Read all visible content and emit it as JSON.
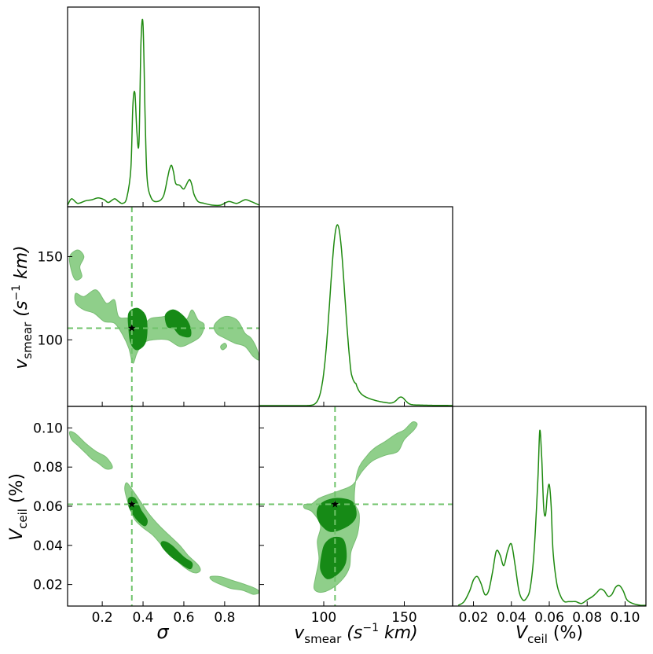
{
  "colors": {
    "line": "#1f8a10",
    "outer_fill": "#8fcf8a",
    "outer_edge": "#79bd74",
    "inner_fill": "#168a16",
    "guide": "#6fc36a",
    "star": "#000000"
  },
  "truth": {
    "sigma": 0.345,
    "v_smear": 107,
    "V_ceil": 0.061
  },
  "axis_labels": {
    "sigma": "σ",
    "v_smear_base": "v",
    "v_smear_sub": "smear",
    "v_smear_unit_open": " (s",
    "v_smear_exp": "−1",
    "v_smear_unit_close": " km)",
    "V_ceil_base": "V",
    "V_ceil_sub": "ceil",
    "V_ceil_unit": " (%)"
  },
  "chart_data": [
    {
      "panel": "sigma-marginal",
      "type": "line",
      "xlim": [
        0.03,
        0.97
      ],
      "x": [
        0.03,
        0.05,
        0.08,
        0.12,
        0.15,
        0.18,
        0.21,
        0.23,
        0.26,
        0.28,
        0.3,
        0.32,
        0.34,
        0.35,
        0.36,
        0.37,
        0.38,
        0.39,
        0.4,
        0.41,
        0.42,
        0.44,
        0.47,
        0.5,
        0.52,
        0.53,
        0.54,
        0.55,
        0.56,
        0.58,
        0.6,
        0.62,
        0.63,
        0.64,
        0.65,
        0.67,
        0.7,
        0.74,
        0.78,
        0.82,
        0.86,
        0.9,
        0.93,
        0.97
      ],
      "y": [
        0.0,
        0.035,
        0.01,
        0.025,
        0.03,
        0.04,
        0.03,
        0.015,
        0.035,
        0.02,
        0.01,
        0.04,
        0.2,
        0.55,
        0.62,
        0.4,
        0.35,
        0.9,
        1.0,
        0.5,
        0.15,
        0.04,
        0.02,
        0.05,
        0.15,
        0.2,
        0.22,
        0.18,
        0.12,
        0.11,
        0.09,
        0.13,
        0.14,
        0.11,
        0.06,
        0.02,
        0.01,
        0.0,
        0.0,
        0.02,
        0.01,
        0.03,
        0.02,
        0.0
      ],
      "tick_labels": [
        "0.2",
        "0.4",
        "0.6",
        "0.8"
      ],
      "tick_values": [
        0.2,
        0.4,
        0.6,
        0.8
      ]
    },
    {
      "panel": "v_smear-marginal",
      "type": "line",
      "xlim": [
        60,
        180
      ],
      "tick_labels": [
        "100",
        "150"
      ],
      "tick_values": [
        100,
        150
      ],
      "peak": {
        "center": 108.5,
        "sigma": 4.6,
        "height": 1.0
      },
      "secondary_bump": {
        "center": 148,
        "sigma": 2.5,
        "height": 0.04
      },
      "right_tail": {
        "start": 117,
        "scale": 12,
        "height": 0.1
      }
    },
    {
      "panel": "V_ceil-marginal",
      "type": "line",
      "xlim": [
        0.009,
        0.111
      ],
      "x": [
        0.012,
        0.015,
        0.018,
        0.02,
        0.022,
        0.024,
        0.026,
        0.028,
        0.03,
        0.032,
        0.034,
        0.036,
        0.038,
        0.04,
        0.042,
        0.044,
        0.046,
        0.048,
        0.05,
        0.052,
        0.054,
        0.055,
        0.056,
        0.057,
        0.058,
        0.059,
        0.06,
        0.061,
        0.062,
        0.064,
        0.066,
        0.068,
        0.07,
        0.072,
        0.074,
        0.077,
        0.08,
        0.083,
        0.085,
        0.087,
        0.089,
        0.091,
        0.093,
        0.095,
        0.097,
        0.099,
        0.101,
        0.104,
        0.108,
        0.111
      ],
      "y": [
        0.0,
        0.02,
        0.08,
        0.14,
        0.16,
        0.12,
        0.06,
        0.08,
        0.18,
        0.3,
        0.28,
        0.22,
        0.3,
        0.34,
        0.22,
        0.08,
        0.03,
        0.04,
        0.1,
        0.3,
        0.7,
        0.97,
        0.82,
        0.55,
        0.5,
        0.62,
        0.67,
        0.55,
        0.3,
        0.12,
        0.05,
        0.02,
        0.02,
        0.02,
        0.02,
        0.01,
        0.03,
        0.05,
        0.07,
        0.09,
        0.08,
        0.05,
        0.06,
        0.1,
        0.11,
        0.08,
        0.03,
        0.01,
        0.0,
        0.0
      ],
      "tick_labels": [
        "0.02",
        "0.04",
        "0.06",
        "0.08",
        "0.10"
      ],
      "tick_values": [
        0.02,
        0.04,
        0.06,
        0.08,
        0.1
      ]
    },
    {
      "panel": "v_smear-vs-sigma",
      "type": "scatter",
      "xlim": [
        0.03,
        0.97
      ],
      "ylim": [
        60,
        180
      ],
      "ytick_labels": [
        "100",
        "150"
      ],
      "ytick_values": [
        100,
        150
      ],
      "outer_contours": [
        [
          [
            0.04,
            150
          ],
          [
            0.08,
            154
          ],
          [
            0.11,
            150
          ],
          [
            0.09,
            144
          ],
          [
            0.1,
            138
          ],
          [
            0.07,
            136
          ],
          [
            0.05,
            141
          ]
        ],
        [
          [
            0.07,
            128
          ],
          [
            0.11,
            126
          ],
          [
            0.17,
            130
          ],
          [
            0.22,
            122
          ],
          [
            0.26,
            124
          ],
          [
            0.28,
            114
          ],
          [
            0.33,
            113
          ],
          [
            0.4,
            110
          ],
          [
            0.44,
            113
          ],
          [
            0.5,
            114
          ],
          [
            0.56,
            116
          ],
          [
            0.61,
            112
          ],
          [
            0.64,
            118
          ],
          [
            0.67,
            112
          ],
          [
            0.7,
            109
          ],
          [
            0.68,
            102
          ],
          [
            0.63,
            98
          ],
          [
            0.58,
            96
          ],
          [
            0.52,
            100
          ],
          [
            0.45,
            100
          ],
          [
            0.4,
            98
          ],
          [
            0.37,
            92
          ],
          [
            0.35,
            86
          ],
          [
            0.33,
            95
          ],
          [
            0.3,
            103
          ],
          [
            0.26,
            110
          ],
          [
            0.21,
            111
          ],
          [
            0.16,
            116
          ],
          [
            0.11,
            118
          ],
          [
            0.07,
            122
          ]
        ],
        [
          [
            0.75,
            109
          ],
          [
            0.8,
            114
          ],
          [
            0.86,
            112
          ],
          [
            0.9,
            104
          ],
          [
            0.93,
            101
          ],
          [
            0.96,
            94
          ],
          [
            0.97,
            88
          ],
          [
            0.94,
            90
          ],
          [
            0.9,
            96
          ],
          [
            0.85,
            98
          ],
          [
            0.8,
            101
          ],
          [
            0.76,
            104
          ]
        ],
        [
          [
            0.78,
            96
          ],
          [
            0.8,
            98
          ],
          [
            0.81,
            96
          ],
          [
            0.79,
            94
          ]
        ]
      ],
      "inner_contours": [
        [
          [
            0.33,
            116
          ],
          [
            0.37,
            119
          ],
          [
            0.41,
            115
          ],
          [
            0.42,
            107
          ],
          [
            0.41,
            98
          ],
          [
            0.37,
            94
          ],
          [
            0.34,
            98
          ],
          [
            0.33,
            107
          ]
        ],
        [
          [
            0.51,
            115
          ],
          [
            0.55,
            118
          ],
          [
            0.6,
            114
          ],
          [
            0.63,
            108
          ],
          [
            0.63,
            102
          ],
          [
            0.58,
            103
          ],
          [
            0.55,
            107
          ],
          [
            0.52,
            108
          ]
        ]
      ]
    },
    {
      "panel": "V_ceil-vs-sigma",
      "type": "scatter",
      "xlim": [
        0.03,
        0.97
      ],
      "ylim": [
        0.009,
        0.111
      ],
      "ytick_labels": [
        "0.02",
        "0.04",
        "0.06",
        "0.08",
        "0.10"
      ],
      "ytick_values": [
        0.02,
        0.04,
        0.06,
        0.08,
        0.1
      ],
      "outer_contours": [
        [
          [
            0.04,
            0.098
          ],
          [
            0.07,
            0.097
          ],
          [
            0.12,
            0.092
          ],
          [
            0.17,
            0.088
          ],
          [
            0.22,
            0.085
          ],
          [
            0.25,
            0.08
          ],
          [
            0.22,
            0.079
          ],
          [
            0.18,
            0.082
          ],
          [
            0.15,
            0.084
          ],
          [
            0.12,
            0.087
          ],
          [
            0.08,
            0.091
          ],
          [
            0.05,
            0.094
          ]
        ],
        [
          [
            0.32,
            0.072
          ],
          [
            0.35,
            0.068
          ],
          [
            0.39,
            0.062
          ],
          [
            0.43,
            0.056
          ],
          [
            0.48,
            0.05
          ],
          [
            0.53,
            0.045
          ],
          [
            0.58,
            0.04
          ],
          [
            0.62,
            0.035
          ],
          [
            0.67,
            0.03
          ],
          [
            0.68,
            0.027
          ],
          [
            0.65,
            0.026
          ],
          [
            0.6,
            0.029
          ],
          [
            0.55,
            0.034
          ],
          [
            0.5,
            0.039
          ],
          [
            0.45,
            0.045
          ],
          [
            0.4,
            0.049
          ],
          [
            0.36,
            0.053
          ],
          [
            0.34,
            0.058
          ],
          [
            0.32,
            0.064
          ],
          [
            0.31,
            0.069
          ]
        ],
        [
          [
            0.73,
            0.024
          ],
          [
            0.78,
            0.024
          ],
          [
            0.84,
            0.022
          ],
          [
            0.9,
            0.02
          ],
          [
            0.95,
            0.018
          ],
          [
            0.97,
            0.016
          ],
          [
            0.94,
            0.015
          ],
          [
            0.89,
            0.017
          ],
          [
            0.83,
            0.018
          ],
          [
            0.78,
            0.02
          ],
          [
            0.74,
            0.022
          ]
        ]
      ],
      "inner_contours": [
        [
          [
            0.33,
            0.064
          ],
          [
            0.36,
            0.064
          ],
          [
            0.39,
            0.058
          ],
          [
            0.42,
            0.053
          ],
          [
            0.41,
            0.05
          ],
          [
            0.38,
            0.052
          ],
          [
            0.35,
            0.056
          ],
          [
            0.33,
            0.06
          ]
        ],
        [
          [
            0.5,
            0.042
          ],
          [
            0.54,
            0.04
          ],
          [
            0.6,
            0.034
          ],
          [
            0.64,
            0.031
          ],
          [
            0.63,
            0.028
          ],
          [
            0.58,
            0.031
          ],
          [
            0.53,
            0.035
          ],
          [
            0.49,
            0.04
          ]
        ]
      ]
    },
    {
      "panel": "V_ceil-vs-v_smear",
      "type": "scatter",
      "xlim": [
        60,
        180
      ],
      "ylim": [
        0.009,
        0.111
      ],
      "outer_contours": [
        [
          [
            88,
            0.061
          ],
          [
            92,
            0.061
          ],
          [
            97,
            0.064
          ],
          [
            103,
            0.066
          ],
          [
            110,
            0.068
          ],
          [
            118,
            0.071
          ],
          [
            124,
            0.078
          ],
          [
            130,
            0.083
          ],
          [
            138,
            0.086
          ],
          [
            146,
            0.088
          ],
          [
            150,
            0.094
          ],
          [
            156,
            0.099
          ],
          [
            158,
            0.102
          ],
          [
            155,
            0.103
          ],
          [
            150,
            0.099
          ],
          [
            145,
            0.097
          ],
          [
            138,
            0.093
          ],
          [
            132,
            0.09
          ],
          [
            127,
            0.086
          ],
          [
            121,
            0.078
          ],
          [
            119,
            0.063
          ],
          [
            122,
            0.056
          ],
          [
            121,
            0.046
          ],
          [
            117,
            0.037
          ],
          [
            116,
            0.029
          ],
          [
            112,
            0.023
          ],
          [
            105,
            0.018
          ],
          [
            98,
            0.016
          ],
          [
            94,
            0.018
          ],
          [
            95,
            0.024
          ],
          [
            97,
            0.033
          ],
          [
            96,
            0.042
          ],
          [
            98,
            0.05
          ],
          [
            93,
            0.057
          ],
          [
            88,
            0.059
          ]
        ]
      ],
      "inner_contours": [
        [
          [
            97,
            0.06
          ],
          [
            102,
            0.063
          ],
          [
            110,
            0.064
          ],
          [
            118,
            0.062
          ],
          [
            120,
            0.055
          ],
          [
            115,
            0.05
          ],
          [
            105,
            0.047
          ],
          [
            99,
            0.05
          ],
          [
            96,
            0.055
          ]
        ],
        [
          [
            101,
            0.041
          ],
          [
            106,
            0.044
          ],
          [
            112,
            0.043
          ],
          [
            114,
            0.036
          ],
          [
            113,
            0.03
          ],
          [
            108,
            0.025
          ],
          [
            102,
            0.023
          ],
          [
            98,
            0.028
          ],
          [
            99,
            0.036
          ]
        ]
      ]
    }
  ]
}
